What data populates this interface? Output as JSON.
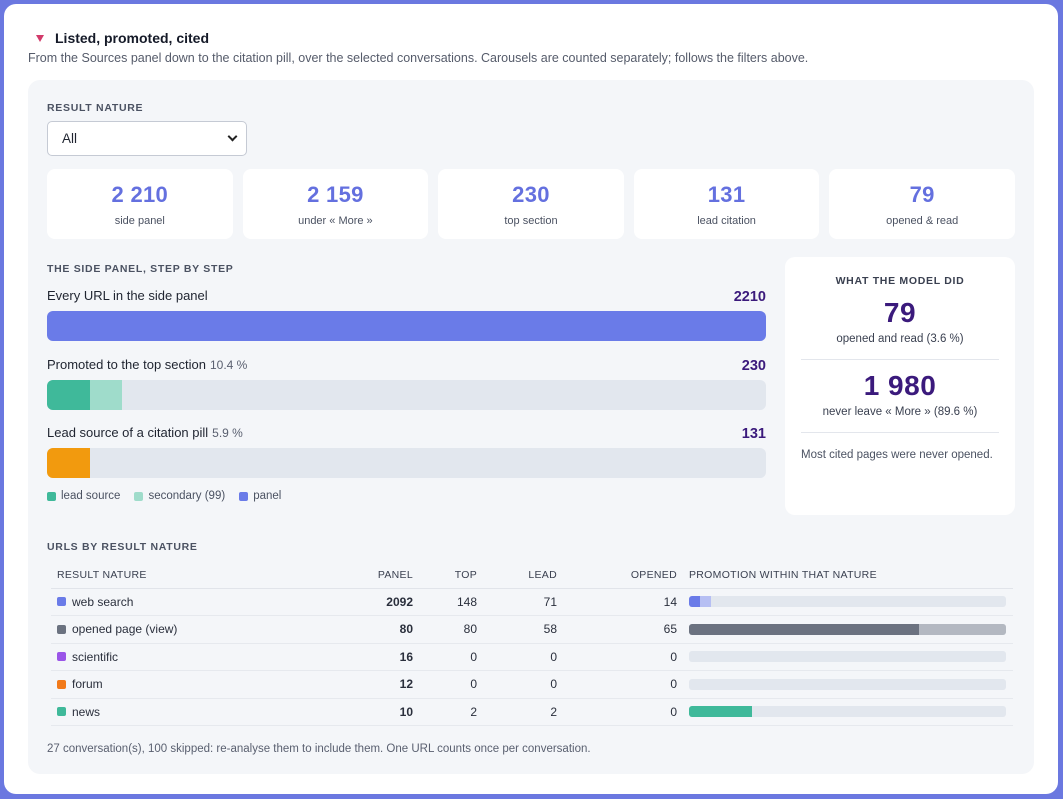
{
  "section": {
    "title": "Listed, promoted, cited",
    "subtitle": "From the Sources panel down to the citation pill, over the selected conversations. Carousels are counted separately; follows the filters above."
  },
  "filter": {
    "label": "RESULT NATURE",
    "selected": "All"
  },
  "kpis": [
    {
      "value": "2 210",
      "label": "side panel"
    },
    {
      "value": "2 159",
      "label": "under « More »"
    },
    {
      "value": "230",
      "label": "top section"
    },
    {
      "value": "131",
      "label": "lead citation"
    },
    {
      "value": "79",
      "label": "opened & read"
    }
  ],
  "funnel": {
    "label": "THE SIDE PANEL, STEP BY STEP",
    "total": 2210,
    "steps": [
      {
        "label": "Every URL in the side panel",
        "pct": "",
        "value": "2210",
        "segments": [
          {
            "count": 2210,
            "color": "#6a7be8"
          }
        ]
      },
      {
        "label": "Promoted to the top section",
        "pct": "10.4 %",
        "value": "230",
        "segments": [
          {
            "count": 131,
            "color": "#3fb99a"
          },
          {
            "count": 99,
            "color": "#9fdccb"
          }
        ]
      },
      {
        "label": "Lead source of a citation pill",
        "pct": "5.9 %",
        "value": "131",
        "segments": [
          {
            "count": 131,
            "color": "#f29a0e"
          }
        ]
      }
    ],
    "legend": [
      {
        "label": "lead source",
        "color": "#3fb99a"
      },
      {
        "label": "secondary (99)",
        "color": "#9fdccb"
      },
      {
        "label": "panel",
        "color": "#6a7be8"
      }
    ]
  },
  "model": {
    "title": "WHAT THE MODEL DID",
    "opened_value": "79",
    "opened_label": "opened and read (3.6 %)",
    "never_value": "1 980",
    "never_label": "never leave « More » (89.6 %)",
    "note": "Most cited pages were never opened."
  },
  "table": {
    "label": "URLS BY RESULT NATURE",
    "headers": [
      "RESULT NATURE",
      "PANEL",
      "TOP",
      "LEAD",
      "OPENED",
      "PROMOTION WITHIN THAT NATURE"
    ],
    "rows": [
      {
        "name": "web search",
        "color": "#6a7be8",
        "panel": "2092",
        "top": "148",
        "lead": "71",
        "opened": "14",
        "lead_frac": 0.034,
        "top_frac": 0.071,
        "bar_color": "#6a7be8",
        "bar_light": "#b6bff3"
      },
      {
        "name": "opened page (view)",
        "color": "#6b7280",
        "panel": "80",
        "top": "80",
        "lead": "58",
        "opened": "65",
        "lead_frac": 0.725,
        "top_frac": 1.0,
        "bar_color": "#6b7280",
        "bar_light": "#b3b8c1"
      },
      {
        "name": "scientific",
        "color": "#9a55e8",
        "panel": "16",
        "top": "0",
        "lead": "0",
        "opened": "0",
        "lead_frac": 0,
        "top_frac": 0,
        "bar_color": "#9a55e8",
        "bar_light": "#d3b6f5"
      },
      {
        "name": "forum",
        "color": "#f27a1a",
        "panel": "12",
        "top": "0",
        "lead": "0",
        "opened": "0",
        "lead_frac": 0,
        "top_frac": 0,
        "bar_color": "#f27a1a",
        "bar_light": "#f8c39a"
      },
      {
        "name": "news",
        "color": "#3fb99a",
        "panel": "10",
        "top": "2",
        "lead": "2",
        "opened": "0",
        "lead_frac": 0.2,
        "top_frac": 0.2,
        "bar_color": "#3fb99a",
        "bar_light": "#9fdccb"
      }
    ]
  },
  "footnote": "27 conversation(s), 100 skipped: re-analyse them to include them. One URL counts once per conversation."
}
